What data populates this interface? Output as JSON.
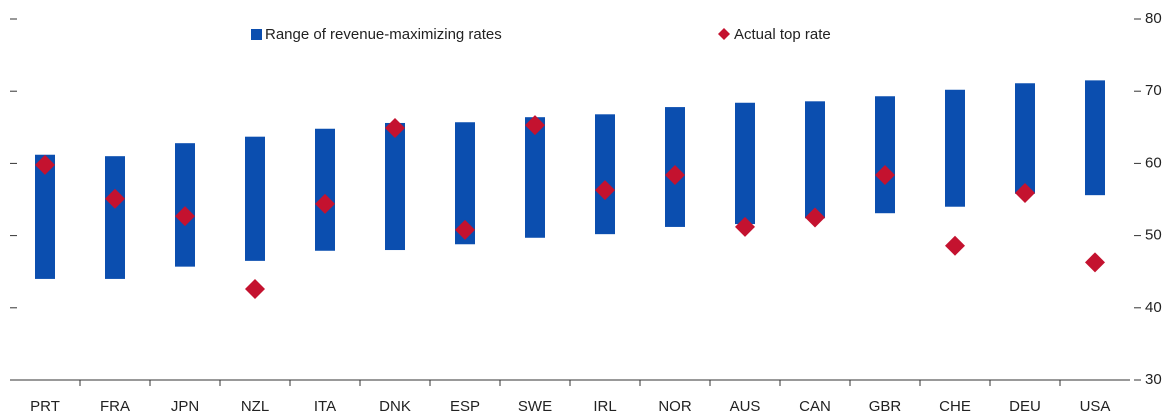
{
  "chart_data": {
    "type": "range-bar",
    "categories": [
      "PRT",
      "FRA",
      "JPN",
      "NZL",
      "ITA",
      "DNK",
      "ESP",
      "SWE",
      "IRL",
      "NOR",
      "AUS",
      "CAN",
      "GBR",
      "CHE",
      "DEU",
      "USA"
    ],
    "series": [
      {
        "name": "Range of revenue-maximizing rates",
        "color": "#0b4eaf",
        "low": [
          44.0,
          44.0,
          45.7,
          46.5,
          47.9,
          48.0,
          48.8,
          49.7,
          50.2,
          51.2,
          51.6,
          52.4,
          53.1,
          54.0,
          55.8,
          55.6
        ],
        "high": [
          61.2,
          61.0,
          62.8,
          63.7,
          64.8,
          65.6,
          65.7,
          66.4,
          66.8,
          67.8,
          68.4,
          68.6,
          69.3,
          70.2,
          71.1,
          71.5
        ]
      },
      {
        "name": "Actual top rate",
        "color": "#c4122f",
        "values": [
          59.8,
          55.1,
          52.7,
          42.6,
          54.4,
          64.9,
          50.8,
          65.3,
          56.3,
          58.4,
          51.2,
          52.5,
          58.4,
          48.6,
          55.9,
          46.3
        ]
      }
    ],
    "ylim": [
      30,
      80
    ],
    "yticks": [
      30,
      40,
      50,
      60,
      70,
      80
    ],
    "legend": "top"
  }
}
